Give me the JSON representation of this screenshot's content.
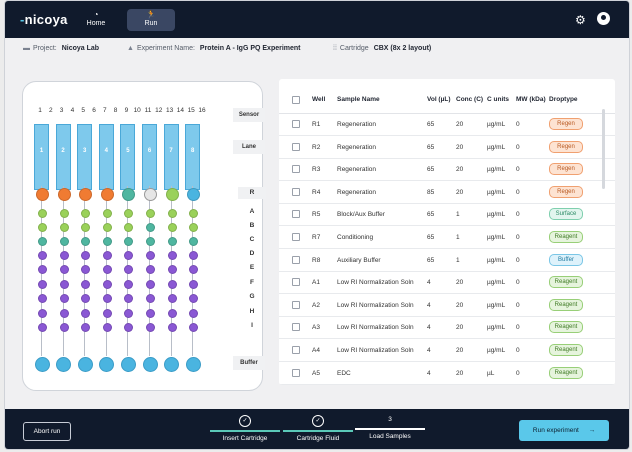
{
  "nav": {
    "logo_text": "nicoya",
    "home_label": "Home",
    "run_label": "Run",
    "home_icon": "speedometer-icon",
    "run_icon": "runner-icon",
    "settings_icon": "gear-icon",
    "account_icon": "user-icon"
  },
  "info": {
    "project_label": "Project:",
    "project_value": "Nicoya Lab",
    "experiment_label": "Experiment Name:",
    "experiment_value": "Protein A - IgG PQ Experiment",
    "cartridge_label": "Cartridge",
    "cartridge_value": "CBX (8x 2 layout)"
  },
  "plate": {
    "column_numbers": [
      "1",
      "2",
      "3",
      "4",
      "5",
      "6",
      "7",
      "8",
      "9",
      "10",
      "11",
      "12",
      "13",
      "14",
      "15",
      "16"
    ],
    "lane_numbers": [
      "1",
      "2",
      "3",
      "4",
      "5",
      "6",
      "7",
      "8"
    ],
    "sensor_label": "Sensor",
    "lane_label": "Lane",
    "buffer_label": "Buffer",
    "row_labels": [
      "R",
      "A",
      "B",
      "C",
      "D",
      "E",
      "F",
      "G",
      "H",
      "I"
    ],
    "colors": {
      "regen": "#f07b32",
      "empty": "#e6e6e6",
      "green": "#9ad15a",
      "teal": "#4fb6a0",
      "blue": "#4ab4e0",
      "purple": "#8a58d4"
    },
    "r_row": [
      "regen",
      "regen",
      "regen",
      "regen",
      "teal",
      "empty",
      "green",
      "blue"
    ]
  },
  "table": {
    "headers": [
      "Well",
      "Sample Name",
      "Vol (µL)",
      "Conc (C)",
      "C units",
      "MW (kDa)",
      "Droptype"
    ],
    "rows": [
      {
        "well": "R1",
        "name": "Regeneration",
        "vol": "65",
        "conc": "20",
        "units": "µg/mL",
        "mw": "0",
        "drop": "Regen",
        "dtype": "regen"
      },
      {
        "well": "R2",
        "name": "Regeneration",
        "vol": "65",
        "conc": "20",
        "units": "µg/mL",
        "mw": "0",
        "drop": "Regen",
        "dtype": "regen"
      },
      {
        "well": "R3",
        "name": "Regeneration",
        "vol": "65",
        "conc": "20",
        "units": "µg/mL",
        "mw": "0",
        "drop": "Regen",
        "dtype": "regen"
      },
      {
        "well": "R4",
        "name": "Regeneration",
        "vol": "85",
        "conc": "20",
        "units": "µg/mL",
        "mw": "0",
        "drop": "Regen",
        "dtype": "regen"
      },
      {
        "well": "R5",
        "name": "Block/Aux Buffer",
        "vol": "65",
        "conc": "1",
        "units": "µg/mL",
        "mw": "0",
        "drop": "Surface",
        "dtype": "surface"
      },
      {
        "well": "R7",
        "name": "Conditioning",
        "vol": "65",
        "conc": "1",
        "units": "µg/mL",
        "mw": "0",
        "drop": "Reagent",
        "dtype": "reagent"
      },
      {
        "well": "R8",
        "name": "Auxiliary Buffer",
        "vol": "65",
        "conc": "1",
        "units": "µg/mL",
        "mw": "0",
        "drop": "Buffer",
        "dtype": "buffer"
      },
      {
        "well": "A1",
        "name": "Low RI Normalization Soln",
        "vol": "4",
        "conc": "20",
        "units": "µg/mL",
        "mw": "0",
        "drop": "Reagent",
        "dtype": "reagent"
      },
      {
        "well": "A2",
        "name": "Low RI Normalization Soln",
        "vol": "4",
        "conc": "20",
        "units": "µg/mL",
        "mw": "0",
        "drop": "Reagent",
        "dtype": "reagent"
      },
      {
        "well": "A3",
        "name": "Low RI Normalization Soln",
        "vol": "4",
        "conc": "20",
        "units": "µg/mL",
        "mw": "0",
        "drop": "Reagent",
        "dtype": "reagent"
      },
      {
        "well": "A4",
        "name": "Low RI Normalization Soln",
        "vol": "4",
        "conc": "20",
        "units": "µg/mL",
        "mw": "0",
        "drop": "Reagent",
        "dtype": "reagent"
      },
      {
        "well": "A5",
        "name": "EDC",
        "vol": "4",
        "conc": "20",
        "units": "µL",
        "mw": "0",
        "drop": "Reagent",
        "dtype": "reagent"
      }
    ],
    "badge_colors": {
      "regen": {
        "bg": "#fde3d2",
        "border": "#f0a070",
        "text": "#b85820"
      },
      "surface": {
        "bg": "#e2f5ee",
        "border": "#7fcfae",
        "text": "#2a8a64"
      },
      "reagent": {
        "bg": "#e6f4dd",
        "border": "#98cf78",
        "text": "#3f7a24"
      },
      "buffer": {
        "bg": "#def2fb",
        "border": "#7ac6e6",
        "text": "#1f7aa0"
      }
    }
  },
  "footer": {
    "abort_label": "Abort run",
    "steps": [
      {
        "label": "Insert Cartridge",
        "icon": "check-icon",
        "done": true
      },
      {
        "label": "Cartridge Fluid",
        "icon": "check-icon",
        "done": true
      },
      {
        "label": "Load Samples",
        "number": "3",
        "done": false
      }
    ],
    "check_glyph": "✓",
    "run_label": "Run experiment",
    "run_icon": "arrow-right-icon",
    "arrow_glyph": "→",
    "accent": "#5ac8ea",
    "step_done_color": "#5ac8b8"
  }
}
